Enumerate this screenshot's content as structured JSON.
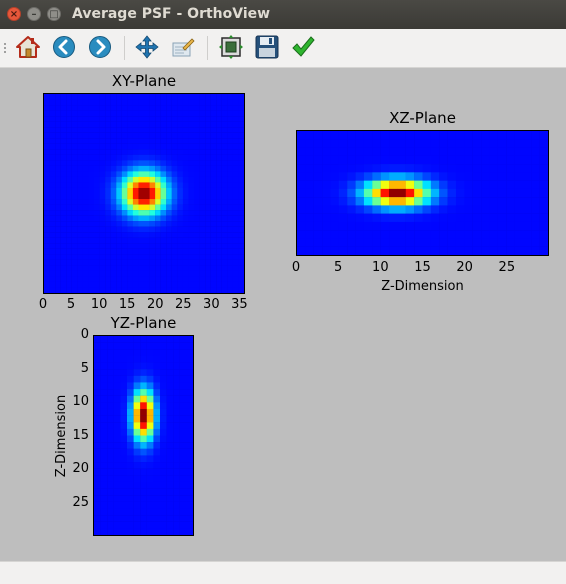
{
  "window": {
    "title": "Average PSF - OrthoView",
    "controls": [
      "×",
      "–",
      "□"
    ]
  },
  "toolbar": {
    "buttons": [
      {
        "name": "home",
        "icon": "home-icon"
      },
      {
        "name": "back",
        "icon": "arrow-left-icon"
      },
      {
        "name": "forward",
        "icon": "arrow-right-icon"
      },
      {
        "name": "pan",
        "icon": "move-icon"
      },
      {
        "name": "zoom",
        "icon": "zoom-rect-icon"
      },
      {
        "name": "configure-subplots",
        "icon": "subplots-icon"
      },
      {
        "name": "save",
        "icon": "floppy-disk-icon"
      },
      {
        "name": "accept",
        "icon": "checkmark-icon"
      }
    ]
  },
  "plots": {
    "xy": {
      "title": "XY-Plane",
      "xticks": [
        "0",
        "5",
        "10",
        "15",
        "20",
        "25",
        "30",
        "35"
      ],
      "xlabel": "",
      "ylabel": ""
    },
    "xz": {
      "title": "XZ-Plane",
      "xticks": [
        "0",
        "5",
        "10",
        "15",
        "20",
        "25"
      ],
      "xlabel": "Z-Dimension",
      "ylabel": ""
    },
    "yz": {
      "title": "YZ-Plane",
      "yticks": [
        "0",
        "5",
        "10",
        "15",
        "20",
        "25"
      ],
      "xlabel": "",
      "ylabel": "Z-Dimension"
    }
  },
  "chart_data": [
    {
      "type": "heatmap",
      "title": "XY-Plane",
      "colormap": "jet",
      "x_range": [
        0,
        36
      ],
      "y_range": [
        0,
        36
      ],
      "peak": [
        18,
        18
      ],
      "spread": [
        2.6,
        2.5
      ]
    },
    {
      "type": "heatmap",
      "title": "XZ-Plane",
      "colormap": "jet",
      "x_range": [
        0,
        30
      ],
      "y_range": [
        0,
        15
      ],
      "xlabel": "Z-Dimension",
      "peak": [
        12,
        7.5
      ],
      "spread": [
        2.5,
        1.1
      ]
    },
    {
      "type": "heatmap",
      "title": "YZ-Plane",
      "colormap": "jet",
      "x_range": [
        0,
        15
      ],
      "y_range": [
        0,
        30
      ],
      "ylabel": "Z-Dimension",
      "peak": [
        7.5,
        12
      ],
      "spread": [
        1.1,
        2.5
      ]
    }
  ]
}
